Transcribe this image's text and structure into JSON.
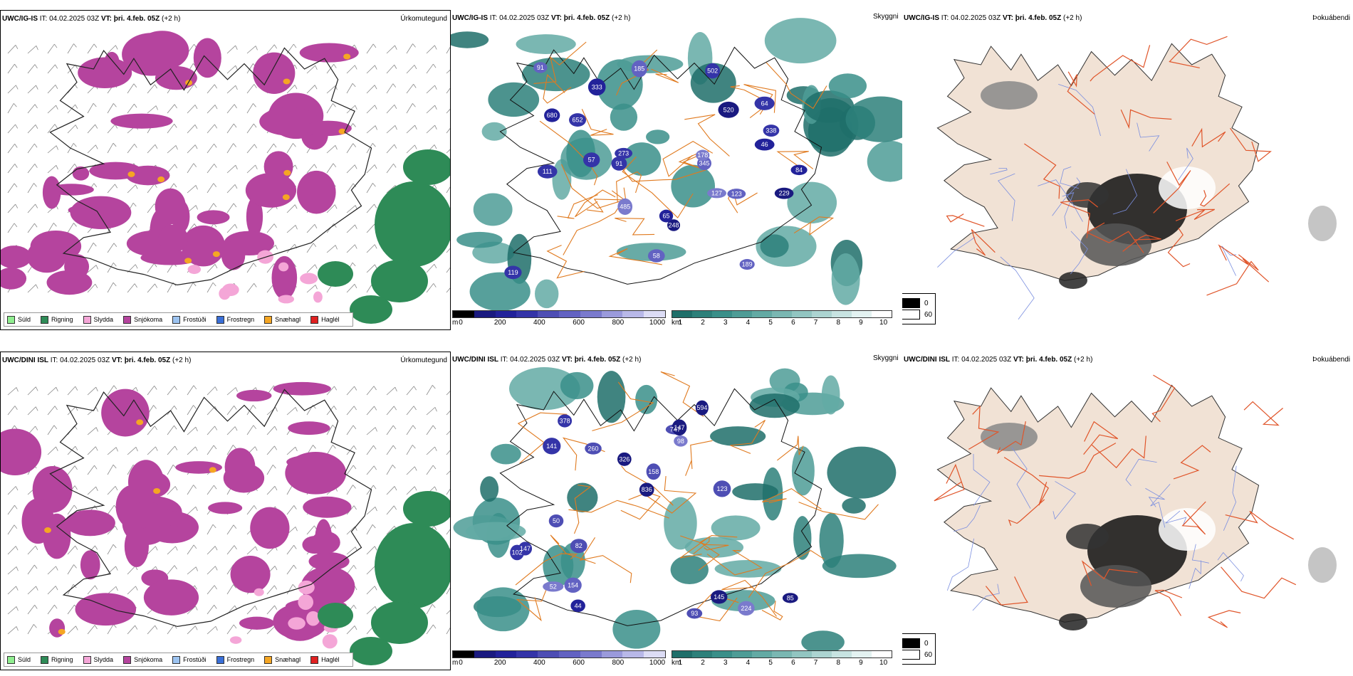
{
  "rows": [
    {
      "model": "UWC/IG-IS",
      "it": "IT: 04.02.2025 03Z",
      "vt_label": "VT:",
      "vt": "þri. 4.feb. 05Z",
      "lead": "(+2 h)",
      "labels": [
        "58",
        "185",
        "111",
        "189",
        "333",
        "248",
        "502",
        "123",
        "57",
        "652",
        "229",
        "485",
        "65",
        "64",
        "84",
        "345",
        "178",
        "91",
        "127",
        "273",
        "338",
        "520",
        "680",
        "91",
        "46",
        "119"
      ]
    },
    {
      "model": "UWC/DINI ISL",
      "it": "IT: 04.02.2025 03Z",
      "vt_label": "VT:",
      "vt": "þri. 4.feb. 05Z",
      "lead": "(+2 h)",
      "labels": [
        "594",
        "260",
        "836",
        "747",
        "224",
        "102",
        "378",
        "326",
        "145",
        "93",
        "141",
        "147",
        "85",
        "52",
        "123",
        "44",
        "158",
        "154",
        "98",
        "82",
        "50",
        "147"
      ]
    }
  ],
  "panel_titles": {
    "precip_type": "Úrkomutegund",
    "visibility": "Skyggni",
    "fog": "Þokuábendi"
  },
  "precip_legend": [
    {
      "label": "Súld",
      "color": "#90ee90"
    },
    {
      "label": "Rigning",
      "color": "#2e8b57"
    },
    {
      "label": "Slydda",
      "color": "#f4a6d7"
    },
    {
      "label": "Snjókoma",
      "color": "#b5449e"
    },
    {
      "label": "Frostúði",
      "color": "#9cc3f0"
    },
    {
      "label": "Frostregn",
      "color": "#3a6fd8"
    },
    {
      "label": "Snæhagl",
      "color": "#f5a623"
    },
    {
      "label": "Haglél",
      "color": "#e02020"
    }
  ],
  "vis_bar_m": {
    "unit": "m",
    "ticks": [
      "0",
      "200",
      "400",
      "600",
      "800",
      "1000"
    ],
    "colors": [
      "#000000",
      "#1a1a80",
      "#22229a",
      "#3434a8",
      "#4e4eb4",
      "#6262c2",
      "#7a7acd",
      "#9a9adb",
      "#b8b8e8",
      "#dcdcf5"
    ]
  },
  "vis_bar_km": {
    "unit": "km",
    "ticks": [
      "1",
      "2",
      "3",
      "4",
      "5",
      "6",
      "7",
      "8",
      "9",
      "10"
    ],
    "colors": [
      "#1f6f6a",
      "#2d807a",
      "#3a8f89",
      "#4e9c96",
      "#63aaa4",
      "#7ab7b2",
      "#92c5c1",
      "#acd4d1",
      "#c7e3e1",
      "#e3f2f1",
      "#ffffff"
    ]
  },
  "fog_legend": [
    {
      "label": "0",
      "color": "#000000"
    },
    {
      "label": "60",
      "color": "#ffffff"
    }
  ]
}
